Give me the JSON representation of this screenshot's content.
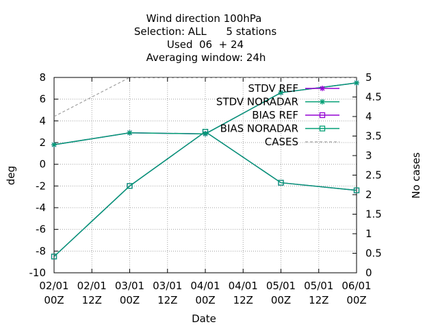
{
  "chart_data": {
    "type": "line",
    "title": [
      "Wind direction 100hPa",
      "Selection: ALL      5 stations",
      "Used  06  + 24",
      "Averaging window: 24h"
    ],
    "xlabel": "Date",
    "ylabel": "deg",
    "y2label": "No cases",
    "categories": [
      "02/01 00Z",
      "02/01 12Z",
      "03/01 00Z",
      "03/01 12Z",
      "04/01 00Z",
      "04/01 12Z",
      "05/01 00Z",
      "05/01 12Z",
      "06/01 00Z"
    ],
    "x_tick_labels": [
      [
        "02/01",
        "00Z"
      ],
      [
        "02/01",
        "12Z"
      ],
      [
        "03/01",
        "00Z"
      ],
      [
        "03/01",
        "12Z"
      ],
      [
        "04/01",
        "00Z"
      ],
      [
        "04/01",
        "12Z"
      ],
      [
        "05/01",
        "00Z"
      ],
      [
        "05/01",
        "12Z"
      ],
      [
        "06/01",
        "00Z"
      ]
    ],
    "ylim": [
      -10,
      8
    ],
    "y_ticks": [
      "-10",
      "-8",
      "-6",
      "-4",
      "-2",
      "0",
      "2",
      "4",
      "6",
      "8"
    ],
    "y2lim": [
      0,
      5
    ],
    "y2_ticks": [
      "0",
      "0.5",
      "1",
      "1.5",
      "2",
      "2.5",
      "3",
      "3.5",
      "4",
      "4.5",
      "5"
    ],
    "grid": true,
    "legend_position": "top-right",
    "series": [
      {
        "name": "STDV REF",
        "axis": "y",
        "color": "#9400d3",
        "marker": "star",
        "x": [
          0,
          2,
          4,
          6,
          8
        ],
        "values": [
          1.8,
          2.9,
          2.8,
          6.6,
          7.5
        ]
      },
      {
        "name": "STDV NORADAR",
        "axis": "y",
        "color": "#009e73",
        "marker": "star",
        "x": [
          0,
          2,
          4,
          6,
          8
        ],
        "values": [
          1.8,
          2.9,
          2.8,
          6.6,
          7.5
        ]
      },
      {
        "name": "BIAS REF",
        "axis": "y",
        "color": "#9400d3",
        "marker": "square",
        "x": [
          0,
          2,
          4,
          6,
          8
        ],
        "values": [
          -8.5,
          -2.0,
          3.0,
          -1.7,
          -2.4
        ]
      },
      {
        "name": "BIAS NORADAR",
        "axis": "y",
        "color": "#009e73",
        "marker": "square",
        "x": [
          0,
          2,
          4,
          6,
          8
        ],
        "values": [
          -8.5,
          -2.0,
          3.0,
          -1.7,
          -2.4
        ]
      },
      {
        "name": "CASES",
        "axis": "y2",
        "color": "#a0a0a0",
        "marker": "none",
        "dashed": true,
        "x": [
          0,
          2,
          4,
          6,
          8
        ],
        "values": [
          4,
          5,
          5,
          5,
          5
        ]
      }
    ]
  }
}
